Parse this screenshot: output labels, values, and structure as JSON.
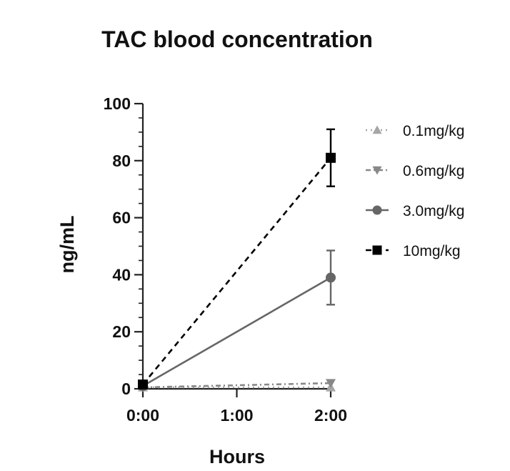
{
  "chart_data": {
    "type": "line",
    "title": "TAC blood concentration",
    "xlabel": "Hours",
    "ylabel": "ng/mL",
    "x": [
      0,
      2
    ],
    "x_tick_values": [
      0,
      1,
      2
    ],
    "x_tick_labels": [
      "0:00",
      "1:00",
      "2:00"
    ],
    "xlim": [
      0,
      2
    ],
    "ylim": [
      0,
      100
    ],
    "y_ticks": [
      0,
      20,
      40,
      60,
      80,
      100
    ],
    "y_tick_labels": [
      "0",
      "20",
      "40",
      "60",
      "80",
      "100"
    ],
    "legend_position": "right",
    "series": [
      {
        "name": "0.1mg/kg",
        "values": [
          0.5,
          0.5
        ],
        "errors": [
          0,
          0
        ],
        "marker": "triangle-up",
        "line": "dotted",
        "color": "#a6a6a6"
      },
      {
        "name": "0.6mg/kg",
        "values": [
          0.5,
          2
        ],
        "errors": [
          0,
          0
        ],
        "marker": "triangle-down",
        "line": "dash-dot",
        "color": "#888888"
      },
      {
        "name": "3.0mg/kg",
        "values": [
          1,
          39
        ],
        "errors": [
          0,
          9.5
        ],
        "marker": "circle",
        "line": "solid",
        "color": "#666666"
      },
      {
        "name": "10mg/kg",
        "values": [
          1.5,
          81
        ],
        "errors": [
          0,
          10
        ],
        "marker": "square",
        "line": "dashed",
        "color": "#000000"
      }
    ]
  }
}
